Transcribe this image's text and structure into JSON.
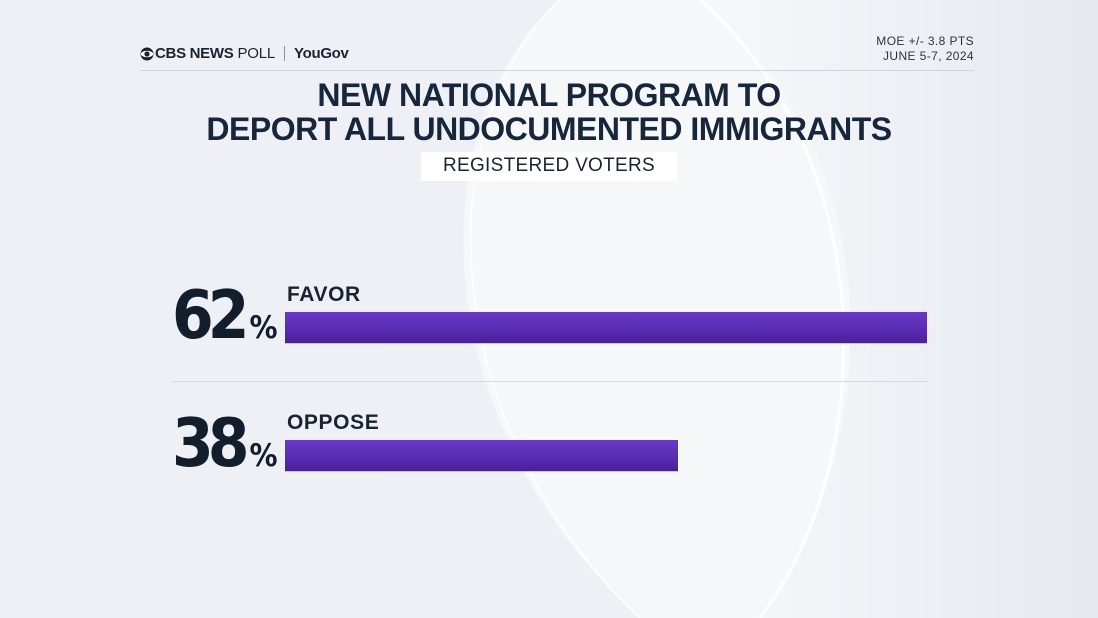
{
  "brand": {
    "network": "CBS NEWS",
    "poll": "POLL",
    "partner": "YouGov"
  },
  "meta": {
    "moe": "MOE +/- 3.8 PTS",
    "dates": "JUNE 5-7, 2024"
  },
  "colors": {
    "bar": "#5a2bb3",
    "text": "#17263a",
    "background": "#eef0f6"
  },
  "chart_data": {
    "type": "bar",
    "orientation": "horizontal",
    "title": "NEW NATIONAL PROGRAM TO DEPORT ALL UNDOCUMENTED IMMIGRANTS",
    "title_lines": [
      "NEW NATIONAL PROGRAM TO",
      "DEPORT ALL UNDOCUMENTED IMMIGRANTS"
    ],
    "subtitle": "REGISTERED VOTERS",
    "categories": [
      "FAVOR",
      "OPPOSE"
    ],
    "values": [
      62,
      38
    ],
    "value_labels": [
      "62",
      "38"
    ],
    "unit": "%",
    "xlim": [
      0,
      62
    ]
  }
}
